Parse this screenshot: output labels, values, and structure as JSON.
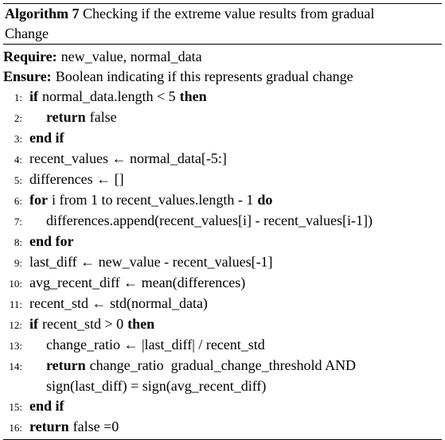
{
  "caption": {
    "label": "Algorithm 7",
    "title_line1": "Checking if the extreme value results from gradual",
    "title_line2": "Change"
  },
  "header": {
    "require_kw": "Require:",
    "require_text": "new_value, normal_data",
    "ensure_kw": "Ensure:",
    "ensure_text": "Boolean indicating if this represents gradual change"
  },
  "lines": [
    {
      "num": "1:",
      "kw1": "if",
      "text": "normal_data.length < 5",
      "kw2": "then"
    },
    {
      "num": "2:",
      "kw1": "return",
      "text": "false"
    },
    {
      "num": "3:",
      "kw1": "end if"
    },
    {
      "num": "4:",
      "text": "recent_values ← normal_data[-5:]"
    },
    {
      "num": "5:",
      "text": "differences ← []"
    },
    {
      "num": "6:",
      "kw1": "for",
      "text": "i from 1 to recent_values.length - 1",
      "kw2": "do"
    },
    {
      "num": "7:",
      "text": "differences.append(recent_values[i] - recent_values[i-1])"
    },
    {
      "num": "8:",
      "kw1": "end for"
    },
    {
      "num": "9:",
      "text": "last_diff ← new_value - recent_values[-1]"
    },
    {
      "num": "10:",
      "text": "avg_recent_diff ← mean(differences)"
    },
    {
      "num": "11:",
      "text": "recent_std ← std(normal_data)"
    },
    {
      "num": "12:",
      "kw1": "if",
      "text": "recent_std > 0",
      "kw2": "then"
    },
    {
      "num": "13:",
      "text": "change_ratio ← |last_diff| / recent_std"
    },
    {
      "num": "14:",
      "kw1": "return",
      "text": "change_ratio  gradual_change_threshold AND",
      "cont": "sign(last_diff) = sign(avg_recent_diff)"
    },
    {
      "num": "15:",
      "kw1": "end if"
    },
    {
      "num": "16:",
      "kw1": "return",
      "text": "false =0"
    }
  ]
}
